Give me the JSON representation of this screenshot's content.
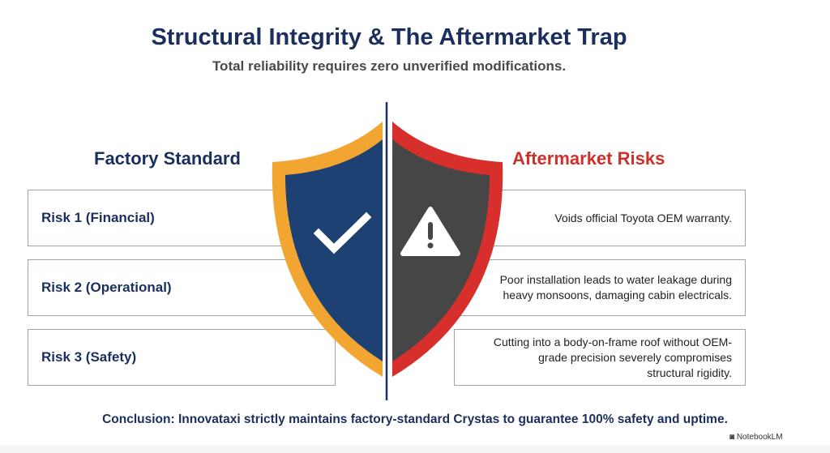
{
  "title": "Structural Integrity & The Aftermarket Trap",
  "subtitle": "Total reliability requires zero unverified modifications.",
  "left": {
    "heading": "Factory Standard",
    "color": "#1b2f5e",
    "icon": "check-icon",
    "shield_fill": "#1c4172",
    "shield_border": "#f2a531"
  },
  "right": {
    "heading": "Aftermarket Risks",
    "color": "#d22f2b",
    "icon": "warning-icon",
    "shield_fill": "#464646",
    "shield_border": "#d7302c"
  },
  "risks": [
    {
      "label": "Risk 1 (Financial)",
      "text": "Voids official Toyota OEM warranty."
    },
    {
      "label": "Risk 2 (Operational)",
      "text": "Poor installation leads to water leakage during heavy monsoons, damaging cabin electricals."
    },
    {
      "label": "Risk 3 (Safety)",
      "text": "Cutting into a body-on-frame roof without OEM-grade precision severely compromises structural rigidity."
    }
  ],
  "conclusion": "Conclusion: Innovataxi strictly maintains factory-standard Crystas to guarantee 100% safety and uptime.",
  "brand": "NotebookLM"
}
